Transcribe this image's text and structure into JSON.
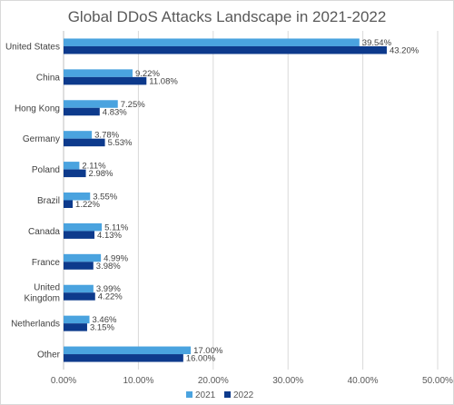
{
  "chart_data": {
    "type": "bar",
    "orientation": "horizontal",
    "title": "Global DDoS Attacks Landscape in 2021-2022",
    "categories": [
      [
        "United States"
      ],
      [
        "China"
      ],
      [
        "Hong Kong"
      ],
      [
        "Germany"
      ],
      [
        "Poland"
      ],
      [
        "Brazil"
      ],
      [
        "Canada"
      ],
      [
        "France"
      ],
      [
        "United",
        "Kingdom"
      ],
      [
        "Netherlands"
      ],
      [
        "Other"
      ]
    ],
    "series": [
      {
        "name": "2021",
        "color": "#4aa3df",
        "values": [
          39.54,
          9.22,
          7.25,
          3.78,
          2.11,
          3.55,
          5.11,
          4.99,
          3.99,
          3.46,
          17.0
        ],
        "labels": [
          "39.54%",
          "9.22%",
          "7.25%",
          "3.78%",
          "2.11%",
          "3.55%",
          "5.11%",
          "4.99%",
          "3.99%",
          "3.46%",
          "17.00%"
        ]
      },
      {
        "name": "2022",
        "color": "#0d3a8c",
        "values": [
          43.2,
          11.08,
          4.83,
          5.53,
          2.98,
          1.22,
          4.13,
          3.98,
          4.22,
          3.15,
          16.0
        ],
        "labels": [
          "43.20%",
          "11.08%",
          "4.83%",
          "5.53%",
          "2.98%",
          "1.22%",
          "4.13%",
          "3.98%",
          "4.22%",
          "3.15%",
          "16.00%"
        ]
      }
    ],
    "xlim": [
      0,
      50
    ],
    "xticks": [
      "0.00%",
      "10.00%",
      "20.00%",
      "30.00%",
      "40.00%",
      "50.00%"
    ],
    "grid": true,
    "legend_position": "bottom"
  }
}
